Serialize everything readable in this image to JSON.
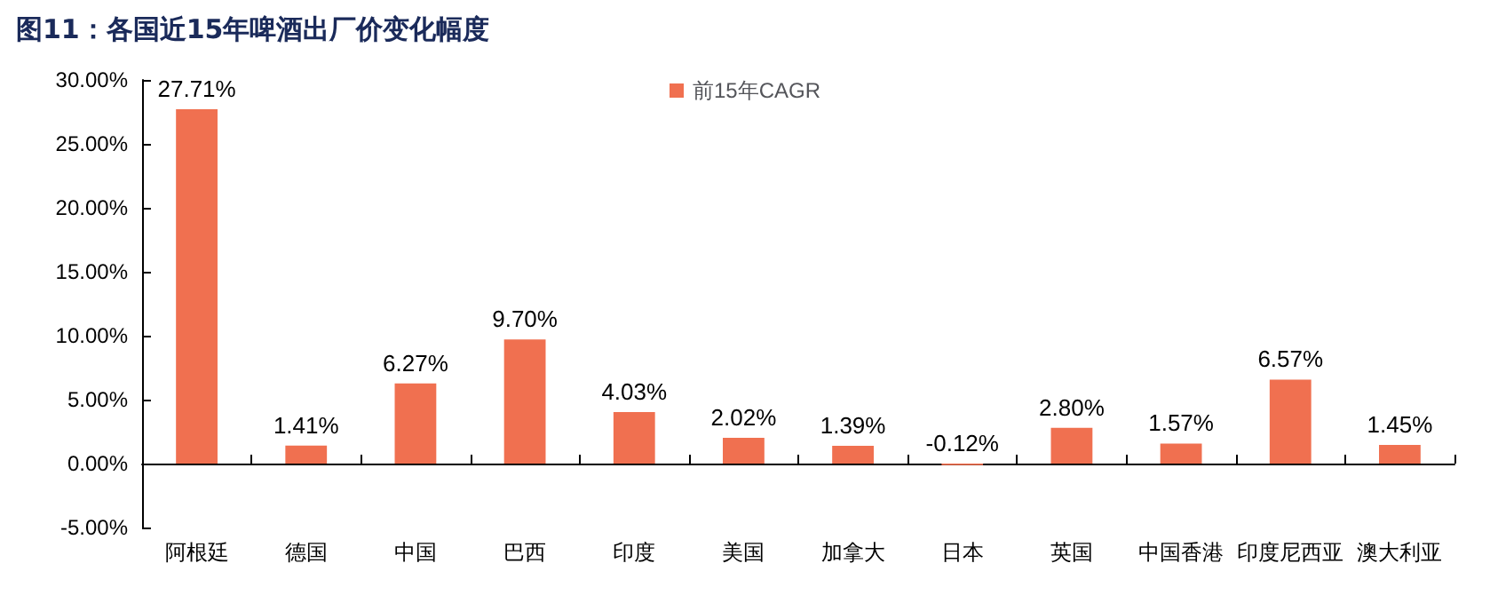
{
  "chart_data": {
    "type": "bar",
    "title": "图11：各国近15年啤酒出厂价变化幅度",
    "categories": [
      "阿根廷",
      "德国",
      "中国",
      "巴西",
      "印度",
      "美国",
      "加拿大",
      "日本",
      "英国",
      "中国香港",
      "印度尼西亚",
      "澳大利亚"
    ],
    "series": [
      {
        "name": "前15年CAGR",
        "color": "#f07050",
        "values": [
          27.71,
          1.41,
          6.27,
          9.7,
          4.03,
          2.02,
          1.39,
          -0.12,
          2.8,
          1.57,
          6.57,
          1.45
        ],
        "value_labels": [
          "27.71%",
          "1.41%",
          "6.27%",
          "9.70%",
          "4.03%",
          "2.02%",
          "1.39%",
          "-0.12%",
          "2.80%",
          "1.57%",
          "6.57%",
          "1.45%"
        ]
      }
    ],
    "ylim": [
      -5,
      30
    ],
    "yticks": [
      {
        "value": -5,
        "label": "-5.00%"
      },
      {
        "value": 0,
        "label": "0.00%"
      },
      {
        "value": 5,
        "label": "5.00%"
      },
      {
        "value": 10,
        "label": "10.00%"
      },
      {
        "value": 15,
        "label": "15.00%"
      },
      {
        "value": 20,
        "label": "20.00%"
      },
      {
        "value": 25,
        "label": "25.00%"
      },
      {
        "value": 30,
        "label": "30.00%"
      }
    ],
    "legend": "top"
  }
}
